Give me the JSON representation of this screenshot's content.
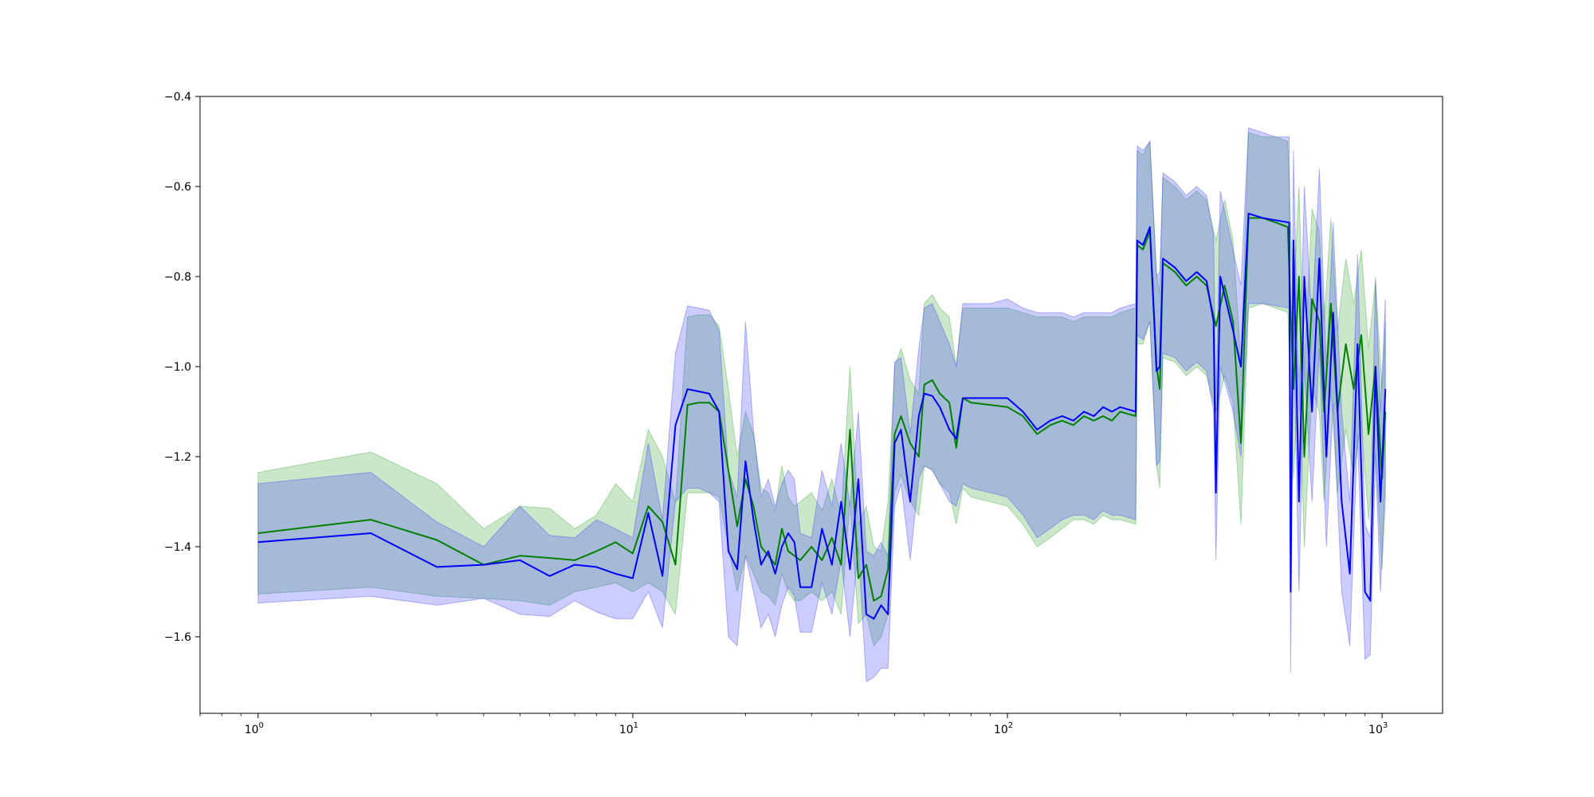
{
  "chart_data": {
    "type": "line",
    "title": "",
    "xlabel": "",
    "ylabel": "",
    "xscale": "log",
    "xlim": [
      0.7,
      1450
    ],
    "ylim": [
      -1.77,
      -0.4
    ],
    "grid": false,
    "x_ticks": [
      {
        "value": 1,
        "base": "10",
        "exp": "0"
      },
      {
        "value": 10,
        "base": "10",
        "exp": "1"
      },
      {
        "value": 100,
        "base": "10",
        "exp": "2"
      },
      {
        "value": 1000,
        "base": "10",
        "exp": "3"
      }
    ],
    "y_ticks": [
      {
        "value": -1.6,
        "label": "−1.6"
      },
      {
        "value": -1.4,
        "label": "−1.4"
      },
      {
        "value": -1.2,
        "label": "−1.2"
      },
      {
        "value": -1.0,
        "label": "−1.0"
      },
      {
        "value": -0.8,
        "label": "−0.8"
      },
      {
        "value": -0.6,
        "label": "−0.6"
      },
      {
        "value": -0.4,
        "label": "−0.4"
      }
    ],
    "series": [
      {
        "color": "#008000",
        "band_color": "#2ca02c",
        "band_opacity": 0.25,
        "points": [
          [
            1,
            -1.37,
            -1.505,
            -1.235
          ],
          [
            2,
            -1.34,
            -1.49,
            -1.19
          ],
          [
            3,
            -1.385,
            -1.51,
            -1.26
          ],
          [
            4,
            -1.44,
            -1.515,
            -1.36
          ],
          [
            5,
            -1.42,
            -1.52,
            -1.31
          ],
          [
            6,
            -1.425,
            -1.53,
            -1.315
          ],
          [
            7,
            -1.43,
            -1.5,
            -1.36
          ],
          [
            8,
            -1.41,
            -1.49,
            -1.33
          ],
          [
            9,
            -1.39,
            -1.48,
            -1.26
          ],
          [
            10,
            -1.415,
            -1.5,
            -1.3
          ],
          [
            11,
            -1.31,
            -1.48,
            -1.14
          ],
          [
            12,
            -1.345,
            -1.5,
            -1.2
          ],
          [
            13,
            -1.44,
            -1.55,
            -1.3
          ],
          [
            14,
            -1.085,
            -1.28,
            -0.89
          ],
          [
            15,
            -1.08,
            -1.28,
            -0.885
          ],
          [
            16,
            -1.08,
            -1.28,
            -0.885
          ],
          [
            17,
            -1.1,
            -1.29,
            -0.91
          ],
          [
            18,
            -1.23,
            -1.4,
            -1.05
          ],
          [
            19,
            -1.355,
            -1.5,
            -1.2
          ],
          [
            20,
            -1.25,
            -1.42,
            -1.1
          ],
          [
            21,
            -1.31,
            -1.46,
            -1.15
          ],
          [
            22,
            -1.4,
            -1.5,
            -1.27
          ],
          [
            23,
            -1.42,
            -1.51,
            -1.28
          ],
          [
            24,
            -1.44,
            -1.53,
            -1.32
          ],
          [
            25,
            -1.36,
            -1.46,
            -1.22
          ],
          [
            26,
            -1.41,
            -1.5,
            -1.29
          ],
          [
            27,
            -1.42,
            -1.52,
            -1.31
          ],
          [
            28,
            -1.43,
            -1.52,
            -1.3
          ],
          [
            30,
            -1.4,
            -1.5,
            -1.28
          ],
          [
            32,
            -1.43,
            -1.52,
            -1.32
          ],
          [
            34,
            -1.38,
            -1.5,
            -1.25
          ],
          [
            36,
            -1.44,
            -1.55,
            -1.33
          ],
          [
            38,
            -1.14,
            -1.3,
            -1.0
          ],
          [
            40,
            -1.47,
            -1.57,
            -1.35
          ],
          [
            42,
            -1.44,
            -1.55,
            -1.31
          ],
          [
            44,
            -1.52,
            -1.62,
            -1.4
          ],
          [
            46,
            -1.51,
            -1.6,
            -1.41
          ],
          [
            48,
            -1.45,
            -1.55,
            -1.3
          ],
          [
            50,
            -1.15,
            -1.28,
            -1.0
          ],
          [
            52,
            -1.11,
            -1.24,
            -0.96
          ],
          [
            55,
            -1.17,
            -1.3,
            -1.03
          ],
          [
            58,
            -1.2,
            -1.33,
            -1.06
          ],
          [
            60,
            -1.04,
            -1.22,
            -0.86
          ],
          [
            63,
            -1.03,
            -1.23,
            -0.84
          ],
          [
            66,
            -1.06,
            -1.26,
            -0.87
          ],
          [
            70,
            -1.08,
            -1.28,
            -0.89
          ],
          [
            73,
            -1.18,
            -1.35,
            -1.0
          ],
          [
            76,
            -1.07,
            -1.27,
            -0.87
          ],
          [
            80,
            -1.08,
            -1.29,
            -0.87
          ],
          [
            90,
            -1.085,
            -1.3,
            -0.87
          ],
          [
            100,
            -1.09,
            -1.31,
            -0.87
          ],
          [
            110,
            -1.11,
            -1.35,
            -0.88
          ],
          [
            120,
            -1.15,
            -1.4,
            -0.89
          ],
          [
            130,
            -1.13,
            -1.38,
            -0.89
          ],
          [
            140,
            -1.12,
            -1.36,
            -0.89
          ],
          [
            150,
            -1.13,
            -1.34,
            -0.9
          ],
          [
            160,
            -1.11,
            -1.34,
            -0.89
          ],
          [
            170,
            -1.12,
            -1.35,
            -0.89
          ],
          [
            180,
            -1.11,
            -1.33,
            -0.89
          ],
          [
            190,
            -1.12,
            -1.34,
            -0.89
          ],
          [
            200,
            -1.1,
            -1.34,
            -0.88
          ],
          [
            220,
            -1.11,
            -1.35,
            -0.87
          ],
          [
            222,
            -0.73,
            -0.95,
            -0.52
          ],
          [
            230,
            -0.74,
            -0.95,
            -0.53
          ],
          [
            240,
            -0.7,
            -0.9,
            -0.5
          ],
          [
            250,
            -1.0,
            -1.22,
            -0.79
          ],
          [
            255,
            -1.05,
            -1.27,
            -0.84
          ],
          [
            260,
            -0.77,
            -0.98,
            -0.58
          ],
          [
            280,
            -0.79,
            -0.99,
            -0.6
          ],
          [
            300,
            -0.82,
            -1.02,
            -0.63
          ],
          [
            320,
            -0.8,
            -1.0,
            -0.61
          ],
          [
            340,
            -0.82,
            -1.02,
            -0.63
          ],
          [
            360,
            -0.91,
            -1.1,
            -0.72
          ],
          [
            380,
            -0.82,
            -1.02,
            -0.63
          ],
          [
            400,
            -0.9,
            -1.08,
            -0.72
          ],
          [
            420,
            -1.17,
            -1.35,
            -0.99
          ],
          [
            440,
            -0.67,
            -0.87,
            -0.48
          ],
          [
            480,
            -0.67,
            -0.86,
            -0.49
          ],
          [
            520,
            -0.68,
            -0.87,
            -0.49
          ],
          [
            560,
            -0.69,
            -0.88,
            -0.5
          ],
          [
            580,
            -1.05,
            -1.25,
            -0.85
          ],
          [
            600,
            -0.8,
            -1.0,
            -0.6
          ],
          [
            620,
            -1.2,
            -1.4,
            -1.0
          ],
          [
            650,
            -0.85,
            -1.05,
            -0.65
          ],
          [
            680,
            -0.9,
            -1.1,
            -0.7
          ],
          [
            700,
            -1.1,
            -1.3,
            -0.9
          ],
          [
            730,
            -0.86,
            -1.05,
            -0.67
          ],
          [
            760,
            -1.1,
            -1.28,
            -0.92
          ],
          [
            800,
            -0.95,
            -1.14,
            -0.76
          ],
          [
            840,
            -1.05,
            -1.24,
            -0.86
          ],
          [
            880,
            -0.93,
            -1.12,
            -0.74
          ],
          [
            920,
            -1.15,
            -1.34,
            -0.96
          ],
          [
            960,
            -1.0,
            -1.19,
            -0.81
          ],
          [
            1000,
            -1.25,
            -1.45,
            -1.05
          ],
          [
            1020,
            -1.1,
            -1.3,
            -0.9
          ]
        ]
      },
      {
        "color": "#0000ff",
        "band_color": "#3333ff",
        "band_opacity": 0.25,
        "points": [
          [
            1,
            -1.39,
            -1.525,
            -1.26
          ],
          [
            2,
            -1.37,
            -1.51,
            -1.235
          ],
          [
            3,
            -1.445,
            -1.53,
            -1.345
          ],
          [
            4,
            -1.44,
            -1.515,
            -1.4
          ],
          [
            5,
            -1.43,
            -1.55,
            -1.31
          ],
          [
            6,
            -1.465,
            -1.555,
            -1.375
          ],
          [
            7,
            -1.44,
            -1.52,
            -1.38
          ],
          [
            8,
            -1.445,
            -1.545,
            -1.34
          ],
          [
            9,
            -1.46,
            -1.56,
            -1.36
          ],
          [
            10,
            -1.47,
            -1.56,
            -1.38
          ],
          [
            11,
            -1.325,
            -1.5,
            -1.17
          ],
          [
            12,
            -1.465,
            -1.58,
            -1.34
          ],
          [
            13,
            -1.13,
            -1.3,
            -0.97
          ],
          [
            14,
            -1.05,
            -1.27,
            -0.865
          ],
          [
            15,
            -1.055,
            -1.27,
            -0.87
          ],
          [
            16,
            -1.06,
            -1.28,
            -0.875
          ],
          [
            17,
            -1.1,
            -1.3,
            -0.92
          ],
          [
            18,
            -1.41,
            -1.6,
            -1.23
          ],
          [
            19,
            -1.45,
            -1.62,
            -1.29
          ],
          [
            20,
            -1.21,
            -1.42,
            -0.9
          ],
          [
            21,
            -1.34,
            -1.5,
            -1.14
          ],
          [
            22,
            -1.44,
            -1.58,
            -1.29
          ],
          [
            23,
            -1.41,
            -1.55,
            -1.25
          ],
          [
            24,
            -1.46,
            -1.6,
            -1.31
          ],
          [
            25,
            -1.4,
            -1.53,
            -1.26
          ],
          [
            26,
            -1.37,
            -1.49,
            -1.23
          ],
          [
            27,
            -1.39,
            -1.51,
            -1.25
          ],
          [
            28,
            -1.49,
            -1.59,
            -1.37
          ],
          [
            30,
            -1.49,
            -1.59,
            -1.38
          ],
          [
            32,
            -1.36,
            -1.48,
            -1.23
          ],
          [
            34,
            -1.44,
            -1.55,
            -1.31
          ],
          [
            36,
            -1.3,
            -1.43,
            -1.17
          ],
          [
            38,
            -1.45,
            -1.6,
            -1.31
          ],
          [
            40,
            -1.25,
            -1.4,
            -1.1
          ],
          [
            42,
            -1.55,
            -1.7,
            -1.41
          ],
          [
            44,
            -1.56,
            -1.69,
            -1.42
          ],
          [
            46,
            -1.53,
            -1.67,
            -1.39
          ],
          [
            48,
            -1.55,
            -1.67,
            -1.42
          ],
          [
            50,
            -1.17,
            -1.31,
            -0.99
          ],
          [
            52,
            -1.14,
            -1.26,
            -0.98
          ],
          [
            55,
            -1.3,
            -1.43,
            -1.15
          ],
          [
            58,
            -1.11,
            -1.25,
            -0.96
          ],
          [
            60,
            -1.06,
            -1.22,
            -0.87
          ],
          [
            63,
            -1.065,
            -1.23,
            -0.86
          ],
          [
            66,
            -1.09,
            -1.26,
            -0.9
          ],
          [
            70,
            -1.14,
            -1.3,
            -0.95
          ],
          [
            73,
            -1.16,
            -1.31,
            -1.0
          ],
          [
            76,
            -1.07,
            -1.26,
            -0.86
          ],
          [
            80,
            -1.07,
            -1.27,
            -0.86
          ],
          [
            90,
            -1.07,
            -1.28,
            -0.86
          ],
          [
            100,
            -1.07,
            -1.29,
            -0.85
          ],
          [
            110,
            -1.1,
            -1.33,
            -0.87
          ],
          [
            120,
            -1.14,
            -1.38,
            -0.88
          ],
          [
            130,
            -1.12,
            -1.36,
            -0.88
          ],
          [
            140,
            -1.11,
            -1.34,
            -0.88
          ],
          [
            150,
            -1.12,
            -1.33,
            -0.89
          ],
          [
            160,
            -1.1,
            -1.33,
            -0.88
          ],
          [
            170,
            -1.11,
            -1.34,
            -0.88
          ],
          [
            180,
            -1.09,
            -1.32,
            -0.88
          ],
          [
            190,
            -1.1,
            -1.33,
            -0.88
          ],
          [
            200,
            -1.09,
            -1.33,
            -0.87
          ],
          [
            220,
            -1.1,
            -1.34,
            -0.86
          ],
          [
            222,
            -0.72,
            -0.93,
            -0.51
          ],
          [
            230,
            -0.73,
            -0.94,
            -0.52
          ],
          [
            240,
            -0.69,
            -0.9,
            -0.5
          ],
          [
            250,
            -1.01,
            -1.22,
            -0.8
          ],
          [
            255,
            -1.0,
            -1.21,
            -0.79
          ],
          [
            260,
            -0.76,
            -0.97,
            -0.57
          ],
          [
            280,
            -0.78,
            -0.98,
            -0.59
          ],
          [
            300,
            -0.81,
            -1.01,
            -0.62
          ],
          [
            320,
            -0.79,
            -0.99,
            -0.6
          ],
          [
            340,
            -0.81,
            -1.01,
            -0.62
          ],
          [
            355,
            -0.9,
            -1.1,
            -0.71
          ],
          [
            360,
            -1.28,
            -1.43,
            -1.1
          ],
          [
            370,
            -0.8,
            -1.0,
            -0.61
          ],
          [
            400,
            -0.92,
            -1.1,
            -0.74
          ],
          [
            420,
            -1.0,
            -1.2,
            -0.82
          ],
          [
            440,
            -0.66,
            -0.86,
            -0.47
          ],
          [
            480,
            -0.67,
            -0.86,
            -0.48
          ],
          [
            520,
            -0.675,
            -0.865,
            -0.49
          ],
          [
            565,
            -0.68,
            -0.87,
            -0.49
          ],
          [
            570,
            -1.5,
            -1.68,
            -1.32
          ],
          [
            580,
            -0.72,
            -0.92,
            -0.52
          ],
          [
            600,
            -1.3,
            -1.5,
            -1.1
          ],
          [
            620,
            -0.8,
            -1.0,
            -0.6
          ],
          [
            650,
            -1.1,
            -1.3,
            -0.9
          ],
          [
            680,
            -0.76,
            -0.96,
            -0.56
          ],
          [
            710,
            -1.2,
            -1.4,
            -1.0
          ],
          [
            740,
            -0.88,
            -1.08,
            -0.68
          ],
          [
            780,
            -1.3,
            -1.5,
            -1.1
          ],
          [
            820,
            -1.46,
            -1.62,
            -1.3
          ],
          [
            860,
            -0.95,
            -1.15,
            -0.75
          ],
          [
            900,
            -1.5,
            -1.65,
            -1.35
          ],
          [
            930,
            -1.52,
            -1.64,
            -1.38
          ],
          [
            960,
            -1.0,
            -1.2,
            -0.8
          ],
          [
            990,
            -1.3,
            -1.5,
            -1.1
          ],
          [
            1020,
            -1.05,
            -1.25,
            -0.85
          ]
        ]
      }
    ]
  }
}
